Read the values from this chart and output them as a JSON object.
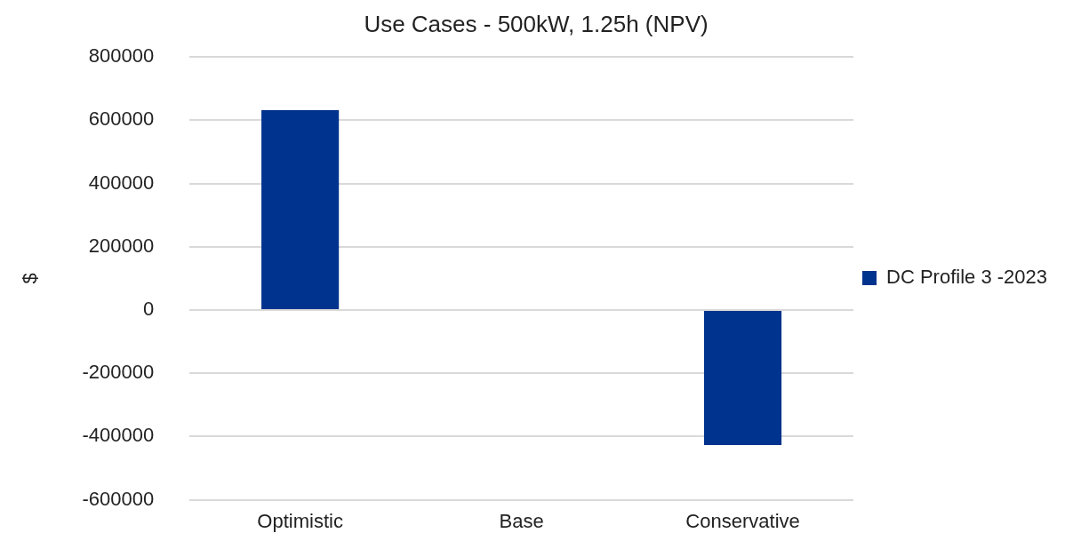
{
  "chart_data": {
    "type": "bar",
    "title": "Use Cases - 500kW, 1.25h (NPV)",
    "ylabel": "$",
    "categories": [
      "Optimistic",
      "Base",
      "Conservative"
    ],
    "series": [
      {
        "name": "DC Profile 3 -2023",
        "color": "#00338d",
        "values": [
          632000,
          null,
          -427000
        ]
      }
    ],
    "ylim": [
      -600000,
      800000
    ],
    "yticks": [
      -600000,
      -400000,
      -200000,
      0,
      200000,
      400000,
      600000,
      800000
    ],
    "grid": "y",
    "legend": "right"
  }
}
